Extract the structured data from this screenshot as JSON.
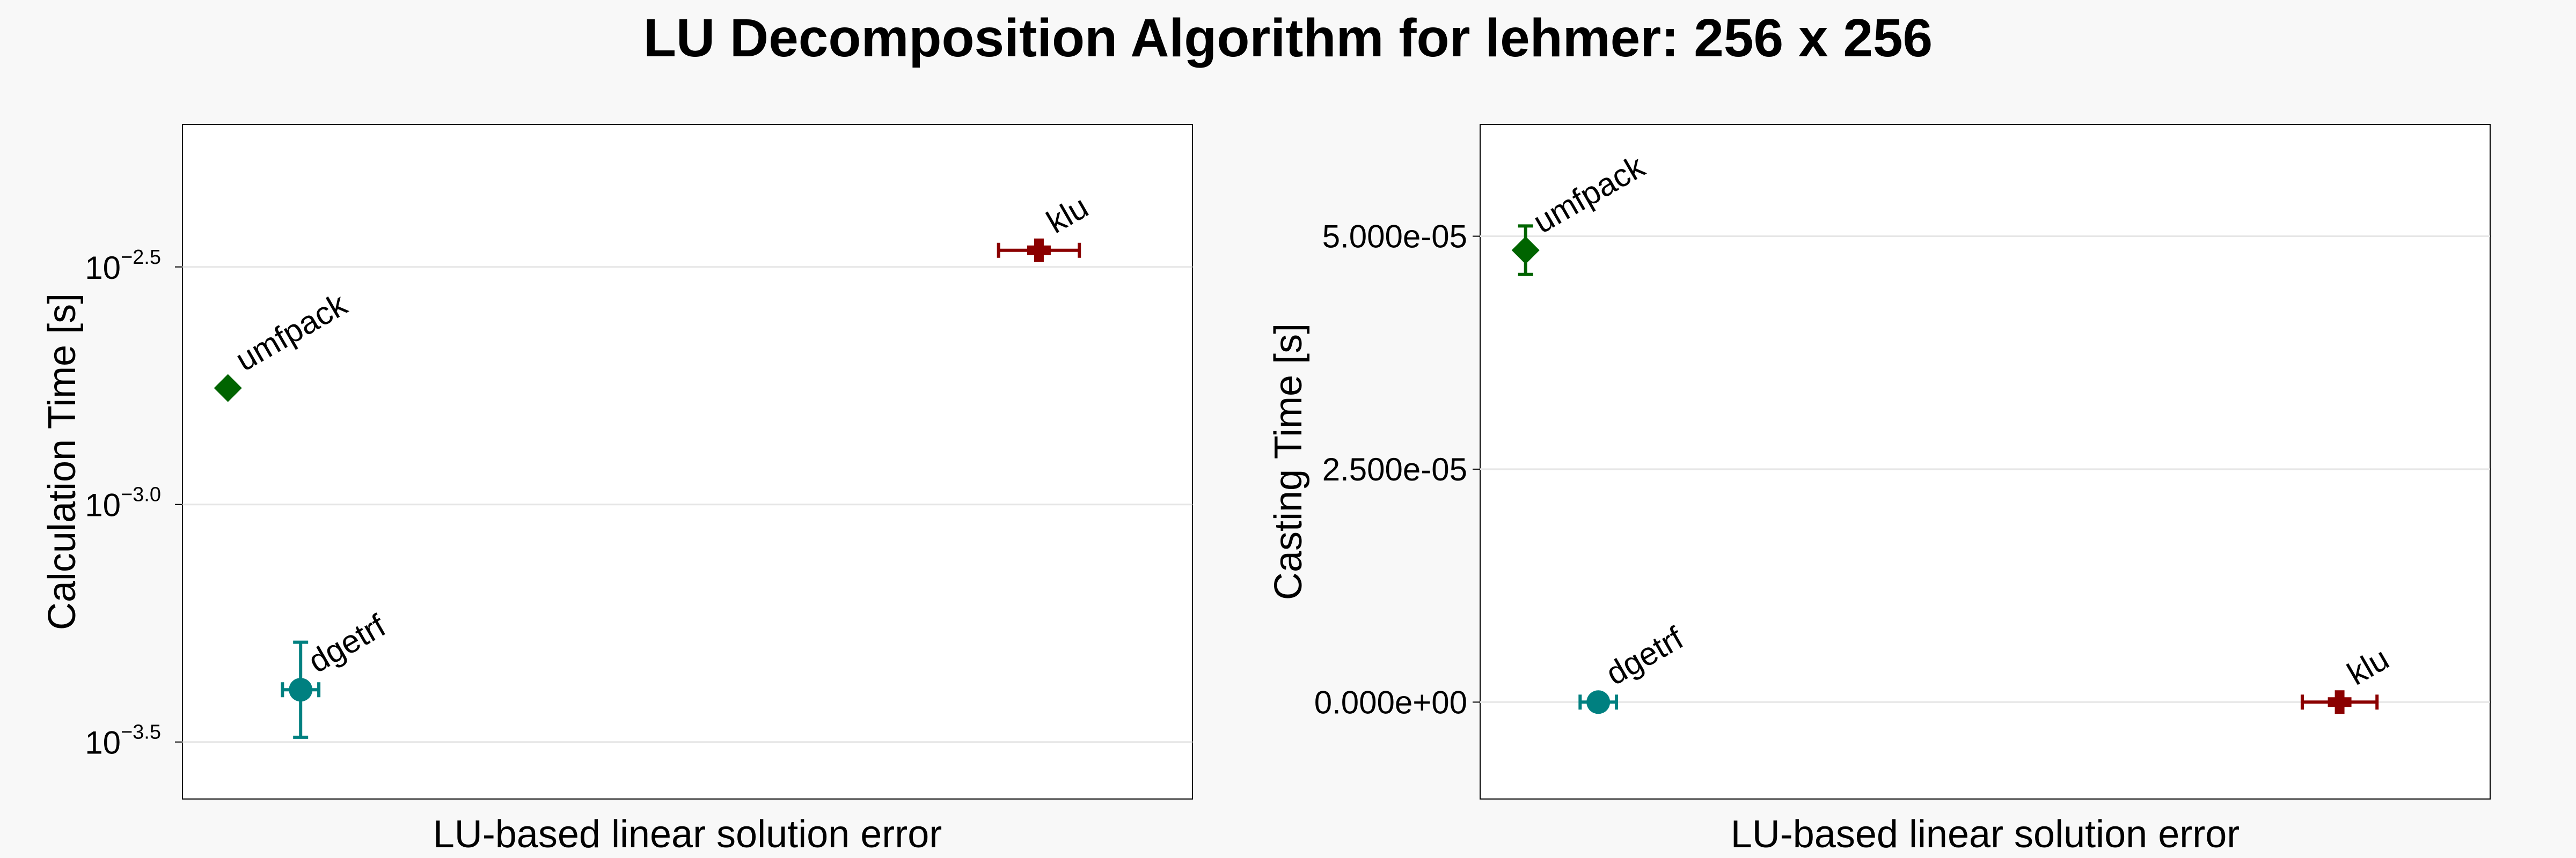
{
  "title": "LU Decomposition Algorithm for lehmer: 256 x 256",
  "colors": {
    "umfpack": "#006400",
    "dgetrf": "#008080",
    "klu": "#8b0000"
  },
  "chart_data": [
    {
      "type": "scatter",
      "xlabel": "LU-based linear solution error",
      "ylabel": "Calculation Time [s]",
      "yscale": "log10",
      "ylim_log10": [
        -3.62,
        -2.2
      ],
      "xlim": [
        0,
        1
      ],
      "xticks_visible": false,
      "grid": true,
      "yticks": [
        {
          "value": -2.5,
          "base": "10",
          "exp": "−2.5"
        },
        {
          "value": -3.0,
          "base": "10",
          "exp": "−3.0"
        },
        {
          "value": -3.5,
          "base": "10",
          "exp": "−3.5"
        }
      ],
      "points": [
        {
          "name": "umfpack",
          "marker": "diamond",
          "color": "#006400",
          "x": 0.045,
          "y_log10": -2.755,
          "yerr_log10": 0,
          "xerr": 0
        },
        {
          "name": "dgetrf",
          "marker": "circle",
          "color": "#008080",
          "x": 0.117,
          "y_log10": -3.39,
          "yerr_log10": 0.1,
          "xerr": 0.018
        },
        {
          "name": "klu",
          "marker": "cross",
          "color": "#8b0000",
          "x": 0.848,
          "y_log10": -2.465,
          "yerr_log10": 0,
          "xerr": 0.04
        }
      ]
    },
    {
      "type": "scatter",
      "xlabel": "LU-based linear solution error",
      "ylabel": "Casting Time [s]",
      "yscale": "linear",
      "ylim": [
        -1.04e-05,
        6.2e-05
      ],
      "xlim": [
        0,
        1
      ],
      "xticks_visible": false,
      "grid": true,
      "yticks": [
        {
          "value": 5e-05,
          "label": "5.000e-05"
        },
        {
          "value": 2.5e-05,
          "label": "2.500e-05"
        },
        {
          "value": 0.0,
          "label": "0.000e+00"
        }
      ],
      "points": [
        {
          "name": "umfpack",
          "marker": "diamond",
          "color": "#006400",
          "x": 0.045,
          "y": 4.85e-05,
          "yerr": 2.6e-06,
          "xerr": 0
        },
        {
          "name": "dgetrf",
          "marker": "circle",
          "color": "#008080",
          "x": 0.117,
          "y": 0.0,
          "yerr": 0,
          "xerr": 0.018
        },
        {
          "name": "klu",
          "marker": "cross",
          "color": "#8b0000",
          "x": 0.851,
          "y": 0.0,
          "yerr": 0,
          "xerr": 0.037
        }
      ]
    }
  ]
}
